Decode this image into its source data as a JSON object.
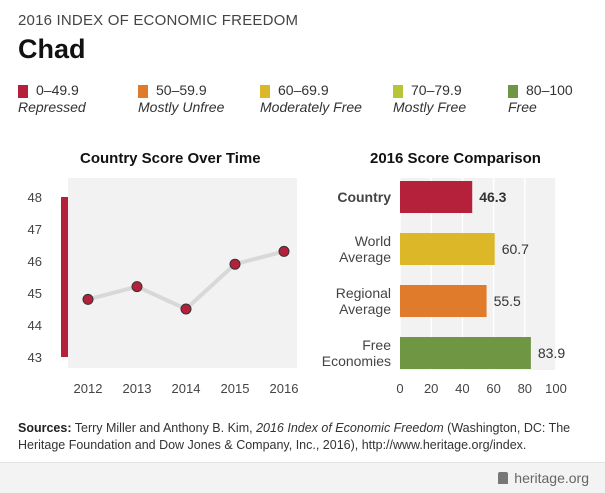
{
  "header": {
    "supertitle": "2016 INDEX OF ECONOMIC FREEDOM",
    "country": "Chad"
  },
  "legend": [
    {
      "range": "0–49.9",
      "label": "Repressed",
      "color": "#b5213a"
    },
    {
      "range": "50–59.9",
      "label": "Mostly Unfree",
      "color": "#e07b2c"
    },
    {
      "range": "60–69.9",
      "label": "Moderately Free",
      "color": "#dcb829"
    },
    {
      "range": "70–79.9",
      "label": "Mostly Free",
      "color": "#b8c536"
    },
    {
      "range": "80–100",
      "label": "Free",
      "color": "#6e9643"
    }
  ],
  "chart_data": [
    {
      "type": "line",
      "title": "Country Score Over Time",
      "x": [
        "2012",
        "2013",
        "2014",
        "2015",
        "2016"
      ],
      "series": [
        {
          "values": [
            44.8,
            45.2,
            44.5,
            45.9,
            46.3
          ]
        }
      ],
      "ylim": [
        43,
        48
      ],
      "yticks": [
        "43",
        "44",
        "45",
        "46",
        "47",
        "48"
      ],
      "band_color": "#b5213a",
      "line_color": "#d8d8d8",
      "marker_color": "#b5213a",
      "grid": false
    },
    {
      "type": "bar",
      "orientation": "horizontal",
      "title": "2016 Score Comparison",
      "categories": [
        "Country",
        "World\nAverage",
        "Regional\nAverage",
        "Free\nEconomies"
      ],
      "values": [
        46.3,
        60.7,
        55.5,
        83.9
      ],
      "value_labels": [
        "46.3",
        "60.7",
        "55.5",
        "83.9"
      ],
      "colors": [
        "#b5213a",
        "#dcb829",
        "#e07b2c",
        "#6e9643"
      ],
      "xlim": [
        0,
        100
      ],
      "xticks": [
        "0",
        "20",
        "40",
        "60",
        "80",
        "100"
      ],
      "grid": true
    }
  ],
  "sources": {
    "label": "Sources:",
    "text_a": " Terry Miller and Anthony B. Kim, ",
    "title": "2016 Index of Economic Freedom",
    "text_b": " (Washington, DC: The Heritage Foundation and Dow Jones & Company, Inc., 2016), http://www.heritage.org/index."
  },
  "brand": {
    "text": "heritage.org",
    "icon": "liberty-bell-icon"
  }
}
